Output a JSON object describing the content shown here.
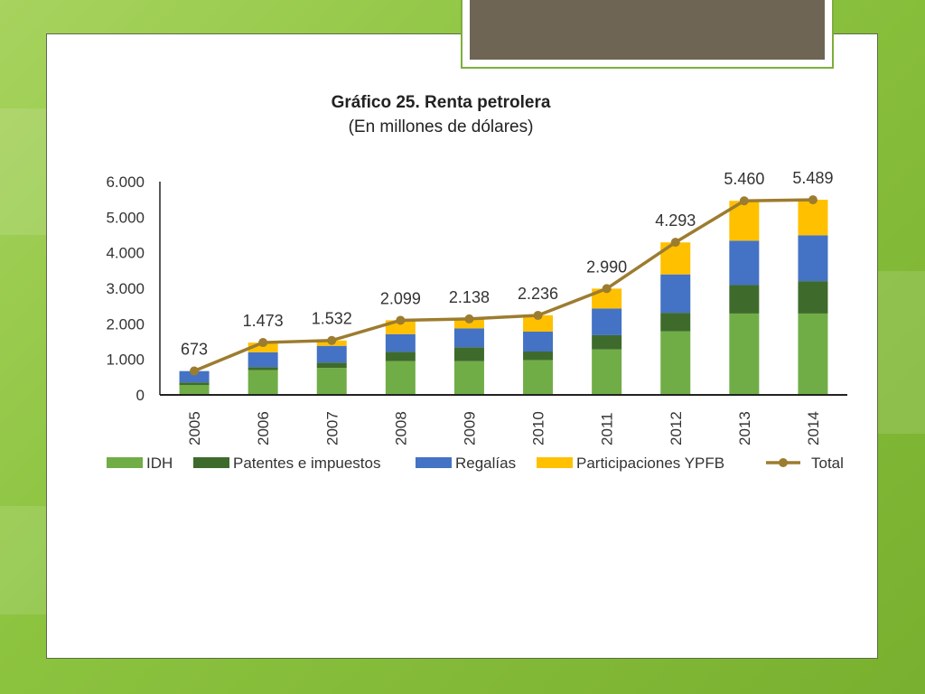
{
  "chart_data": {
    "type": "bar",
    "stacked": true,
    "title": "Gráfico 25. Renta petrolera",
    "subtitle": "(En millones de dólares)",
    "categories": [
      "2005",
      "2006",
      "2007",
      "2008",
      "2009",
      "2010",
      "2011",
      "2012",
      "2013",
      "2014"
    ],
    "y_ticks": [
      "0",
      "1.000",
      "2.000",
      "3.000",
      "4.000",
      "5.000",
      "6.000"
    ],
    "ylim": [
      0,
      6000
    ],
    "series": [
      {
        "name": "IDH",
        "color": "#70ad47",
        "values": [
          280,
          700,
          760,
          950,
          950,
          980,
          1280,
          1790,
          2290,
          2290
        ]
      },
      {
        "name": "Patentes e impuestos",
        "color": "#3e6b2c",
        "values": [
          70,
          80,
          150,
          260,
          390,
          240,
          400,
          520,
          800,
          910
        ]
      },
      {
        "name": "Regalías",
        "color": "#4472c4",
        "values": [
          320,
          420,
          470,
          500,
          530,
          560,
          750,
          1080,
          1250,
          1290
        ]
      },
      {
        "name": "Participaciones YPFB",
        "color": "#ffc000",
        "values": [
          0,
          270,
          150,
          390,
          270,
          460,
          560,
          900,
          1120,
          1000
        ]
      }
    ],
    "line_series": {
      "name": "Total",
      "color": "#9c7c2f",
      "values": [
        673,
        1473,
        1532,
        2099,
        2138,
        2236,
        2990,
        4293,
        5460,
        5489
      ],
      "labels": [
        "673",
        "1.473",
        "1.532",
        "2.099",
        "2.138",
        "2.236",
        "2.990",
        "4.293",
        "5.460",
        "5.489"
      ]
    },
    "legend_position": "bottom",
    "grid": false
  }
}
